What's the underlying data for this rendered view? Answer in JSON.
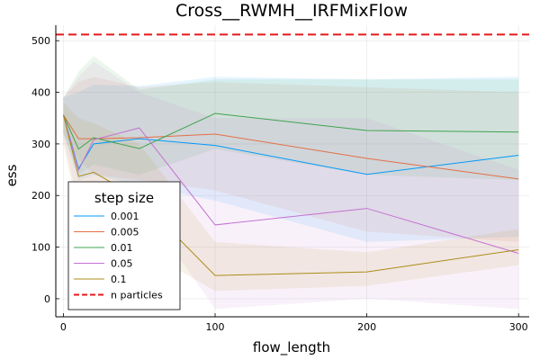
{
  "chart_data": {
    "type": "line",
    "title": "Cross__RWMH__IRFMixFlow",
    "xlabel": "flow_length",
    "ylabel": "ess",
    "xlim": [
      -5,
      307
    ],
    "ylim": [
      -35,
      530
    ],
    "x_ticks": [
      0,
      100,
      200,
      300
    ],
    "y_ticks": [
      0,
      100,
      200,
      300,
      400,
      500
    ],
    "grid": true,
    "legend": {
      "title": "step size",
      "placement": "bottom-left"
    },
    "x": [
      0,
      10,
      20,
      50,
      100,
      200,
      300
    ],
    "series": [
      {
        "name": "0.001",
        "color": "#009AFA",
        "values": [
          356,
          252,
          300,
          310,
          297,
          241,
          278
        ],
        "lower": [
          320,
          230,
          240,
          220,
          190,
          110,
          120
        ],
        "upper": [
          390,
          400,
          415,
          412,
          430,
          425,
          430
        ]
      },
      {
        "name": "0.005",
        "color": "#E36F47",
        "values": [
          356,
          310,
          310,
          312,
          319,
          272,
          232
        ],
        "lower": [
          320,
          270,
          240,
          230,
          210,
          130,
          110
        ],
        "upper": [
          390,
          420,
          430,
          410,
          420,
          410,
          400
        ]
      },
      {
        "name": "0.01",
        "color": "#3EA44E",
        "values": [
          356,
          290,
          312,
          291,
          359,
          326,
          323
        ],
        "lower": [
          320,
          240,
          260,
          240,
          290,
          240,
          230
        ],
        "upper": [
          390,
          440,
          470,
          405,
          425,
          425,
          425
        ]
      },
      {
        "name": "0.05",
        "color": "#C371D2",
        "values": [
          356,
          249,
          308,
          331,
          143,
          175,
          88
        ],
        "lower": [
          310,
          180,
          200,
          190,
          -20,
          0,
          -20
        ],
        "upper": [
          390,
          430,
          460,
          400,
          350,
          350,
          250
        ]
      },
      {
        "name": "0.1",
        "color": "#AC8D18",
        "values": [
          356,
          237,
          245,
          194,
          45,
          52,
          95
        ],
        "lower": [
          300,
          160,
          150,
          100,
          15,
          25,
          65
        ],
        "upper": [
          380,
          350,
          340,
          300,
          110,
          90,
          135
        ]
      }
    ],
    "reference_line": {
      "name": "n particles",
      "value": 512,
      "color": "#E41A1C"
    }
  }
}
